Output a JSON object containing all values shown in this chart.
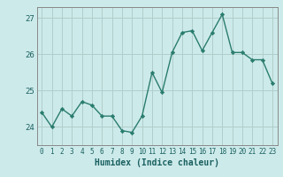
{
  "x": [
    0,
    1,
    2,
    3,
    4,
    5,
    6,
    7,
    8,
    9,
    10,
    11,
    12,
    13,
    14,
    15,
    16,
    17,
    18,
    19,
    20,
    21,
    22,
    23
  ],
  "y": [
    24.4,
    24.0,
    24.5,
    24.3,
    24.7,
    24.6,
    24.3,
    24.3,
    23.9,
    23.85,
    24.3,
    25.5,
    24.95,
    26.05,
    26.6,
    26.65,
    26.1,
    26.6,
    27.1,
    26.05,
    26.05,
    25.85,
    25.85,
    25.2
  ],
  "xlabel": "Humidex (Indice chaleur)",
  "xlim": [
    -0.5,
    23.5
  ],
  "ylim": [
    23.5,
    27.3
  ],
  "yticks": [
    24,
    25,
    26,
    27
  ],
  "xticks": [
    0,
    1,
    2,
    3,
    4,
    5,
    6,
    7,
    8,
    9,
    10,
    11,
    12,
    13,
    14,
    15,
    16,
    17,
    18,
    19,
    20,
    21,
    22,
    23
  ],
  "line_color": "#2a7d6e",
  "marker": "D",
  "marker_size": 2.2,
  "bg_color": "#cdeaea",
  "grid_color": "#b0cecc",
  "line_width": 1.0,
  "tick_label_color": "#1a6060",
  "xlabel_color": "#1a6060",
  "tick_fontsize": 5.5,
  "ylabel_fontsize": 6.5,
  "xlabel_fontsize": 7.0
}
